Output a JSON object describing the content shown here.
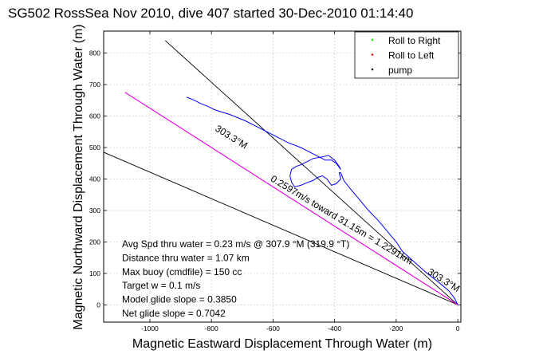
{
  "chart_data": {
    "type": "line",
    "title": "SG502 RossSea Nov 2010, dive 407 started 30-Dec-2010 01:14:40",
    "xlabel": "Magnetic Eastward Displacement Through Water (m)",
    "ylabel": "Magnetic Northward Displacement Through Water (m)",
    "xlim": [
      -1150,
      10
    ],
    "ylim": [
      -55,
      870
    ],
    "xticks": [
      -1000,
      -800,
      -600,
      -400,
      -200,
      0
    ],
    "yticks": [
      0,
      100,
      200,
      300,
      400,
      500,
      600,
      700,
      800
    ],
    "grid": true,
    "legend_position": "top-right",
    "legend": [
      {
        "label": "Roll to Right",
        "color": "#00ff00"
      },
      {
        "label": "Roll to Left",
        "color": "#ff0000"
      },
      {
        "label": "pump",
        "color": "#000000"
      }
    ],
    "series": [
      {
        "color": "#0000ff",
        "x": [
          0,
          -10,
          -30,
          -60,
          -100,
          -140,
          -180,
          -200,
          -230,
          -260,
          -290,
          -320,
          -350,
          -370,
          -380,
          -385,
          -380,
          -395,
          -410,
          -425,
          -440,
          -455,
          -470,
          -490,
          -510,
          -530,
          -540,
          -545,
          -540,
          -525,
          -510,
          -490,
          -470,
          -440,
          -420,
          -400,
          -385,
          -380,
          -395,
          -410,
          -430,
          -470,
          -510,
          -550,
          -590,
          -640,
          -690,
          -740,
          -790,
          -810,
          -835,
          -855,
          -880
        ],
        "y": [
          0,
          20,
          45,
          70,
          100,
          135,
          170,
          200,
          235,
          270,
          300,
          335,
          370,
          395,
          420,
          420,
          400,
          385,
          380,
          400,
          410,
          405,
          395,
          388,
          380,
          375,
          390,
          410,
          430,
          440,
          445,
          455,
          465,
          470,
          475,
          460,
          440,
          430,
          450,
          460,
          460,
          480,
          500,
          515,
          535,
          560,
          585,
          605,
          620,
          630,
          640,
          650,
          660
        ]
      },
      {
        "color": "#ff00ff",
        "x": [
          0,
          -1080
        ],
        "y": [
          0,
          675
        ]
      }
    ],
    "reference_lines": [
      {
        "x": [
          0,
          -1150
        ],
        "y": [
          0,
          485
        ],
        "label": ""
      },
      {
        "x": [
          0,
          -950
        ],
        "y": [
          0,
          840
        ],
        "label": "303.3°M"
      },
      {
        "x": [
          0,
          -1080
        ],
        "y": [
          0,
          675
        ],
        "label": ""
      }
    ],
    "rotated_labels": [
      {
        "text": "303.3°M",
        "x": -790,
        "y": 555,
        "angle": 32
      },
      {
        "text": "0.2597m/s toward 31.15m = 1.2291km",
        "x": -610,
        "y": 395,
        "angle": 31
      },
      {
        "text": "303.3°M",
        "x": -100,
        "y": 100,
        "angle": 32
      }
    ],
    "annotations": [
      "Avg Spd thru water =  0.23 m/s @ 307.9 °M (319.9 °T)",
      "Distance thru water =  1.07 km",
      "Max buoy (cmdfile) = 150 cc",
      "Target w = 0.1 m/s",
      "Model glide slope = 0.3850",
      "Net glide slope = 0.7042"
    ]
  }
}
